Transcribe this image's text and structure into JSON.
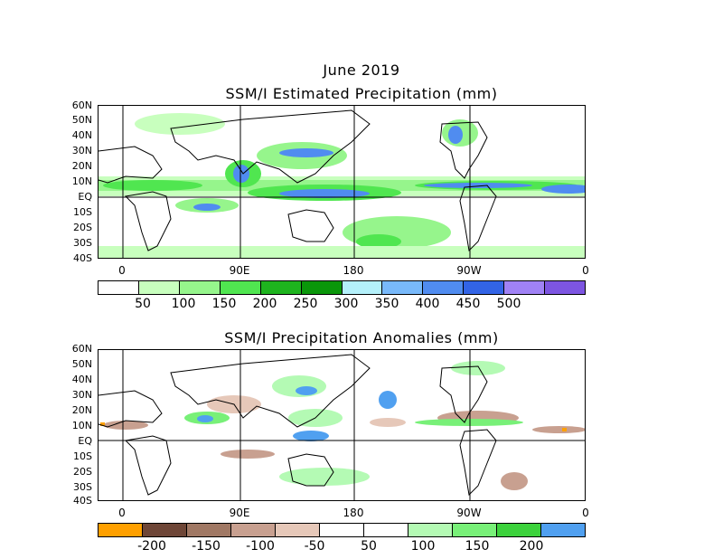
{
  "header": {
    "period": "June 2019"
  },
  "top_map": {
    "title": "SSM/I Estimated Precipitation (mm)",
    "lat_labels": [
      "60N",
      "50N",
      "40N",
      "30N",
      "20N",
      "10N",
      "EQ",
      "10S",
      "20S",
      "30S",
      "40S"
    ],
    "lon_labels": [
      "0",
      "90E",
      "180",
      "90W",
      "0"
    ],
    "colorbar": {
      "colors": [
        "#ffffff",
        "#c8ffbe",
        "#96f58c",
        "#50e650",
        "#1eb41e",
        "#0a960a",
        "#b4f0fa",
        "#78b9fa",
        "#508cf0",
        "#3264e6",
        "#a082f5",
        "#7d55e1"
      ],
      "labels": [
        "50",
        "100",
        "150",
        "200",
        "250",
        "300",
        "350",
        "400",
        "450",
        "500"
      ]
    }
  },
  "bottom_map": {
    "title": "SSM/I Precipitation Anomalies (mm)",
    "lat_labels": [
      "60N",
      "50N",
      "40N",
      "30N",
      "20N",
      "10N",
      "EQ",
      "10S",
      "20S",
      "30S",
      "40S"
    ],
    "lon_labels": [
      "0",
      "90E",
      "180",
      "90W",
      "0"
    ],
    "colorbar": {
      "colors": [
        "#ffa000",
        "#6e4637",
        "#a07864",
        "#c8a090",
        "#e6c8b9",
        "#ffffff",
        "#ffffff",
        "#b4fab4",
        "#78f078",
        "#3cd23c",
        "#50a0f0"
      ],
      "labels": [
        "-200",
        "-150",
        "-100",
        "-50",
        "50",
        "100",
        "150",
        "200"
      ]
    }
  }
}
